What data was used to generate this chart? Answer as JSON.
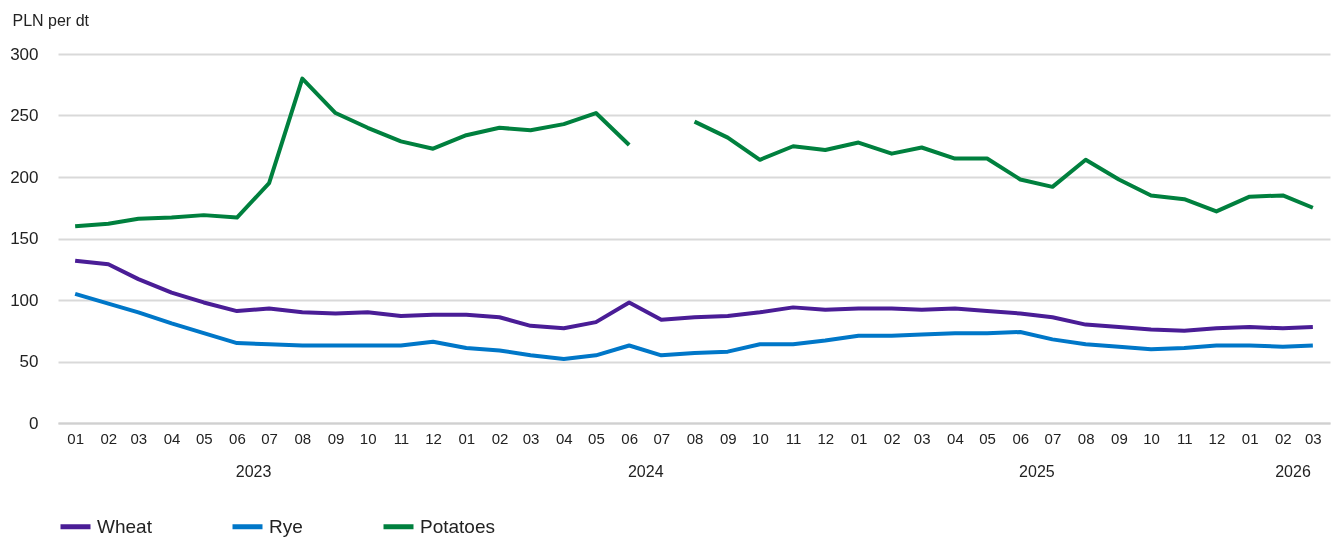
{
  "chart_data": {
    "type": "line",
    "ylabel": "PLN per dt",
    "x": [
      "2023-01",
      "2023-02",
      "2023-03",
      "2023-04",
      "2023-05",
      "2023-06",
      "2023-07",
      "2023-08",
      "2023-09",
      "2023-10",
      "2023-11",
      "2023-12",
      "2024-01",
      "2024-02",
      "2024-03",
      "2024-04",
      "2024-05",
      "2024-06",
      "2024-07",
      "2024-08",
      "2024-09",
      "2024-10",
      "2024-11",
      "2024-12",
      "2025-01",
      "2025-02",
      "2025-03",
      "2025-04",
      "2025-05",
      "2025-06",
      "2025-07",
      "2025-08",
      "2025-09",
      "2025-10",
      "2025-11",
      "2025-12",
      "2026-01",
      "2026-02",
      "2026-03"
    ],
    "xlim": [
      "2022-12-16",
      "2026-03-17"
    ],
    "xticks": [
      {
        "value": "2023-01",
        "label": "01"
      },
      {
        "value": "2023-02",
        "label": "02"
      },
      {
        "value": "2023-03",
        "label": "03"
      },
      {
        "value": "2023-04",
        "label": "04"
      },
      {
        "value": "2023-05",
        "label": "05"
      },
      {
        "value": "2023-06",
        "label": "06"
      },
      {
        "value": "2023-07",
        "label": "07"
      },
      {
        "value": "2023-08",
        "label": "08"
      },
      {
        "value": "2023-09",
        "label": "09"
      },
      {
        "value": "2023-10",
        "label": "10"
      },
      {
        "value": "2023-11",
        "label": "11"
      },
      {
        "value": "2023-12",
        "label": "12"
      },
      {
        "value": "2024-01",
        "label": "01"
      },
      {
        "value": "2024-02",
        "label": "02"
      },
      {
        "value": "2024-03",
        "label": "03"
      },
      {
        "value": "2024-04",
        "label": "04"
      },
      {
        "value": "2024-05",
        "label": "05"
      },
      {
        "value": "2024-06",
        "label": "06"
      },
      {
        "value": "2024-07",
        "label": "07"
      },
      {
        "value": "2024-08",
        "label": "08"
      },
      {
        "value": "2024-09",
        "label": "09"
      },
      {
        "value": "2024-10",
        "label": "10"
      },
      {
        "value": "2024-11",
        "label": "11"
      },
      {
        "value": "2024-12",
        "label": "12"
      },
      {
        "value": "2025-01",
        "label": "01"
      },
      {
        "value": "2025-02",
        "label": "02"
      },
      {
        "value": "2025-03",
        "label": "03"
      },
      {
        "value": "2025-04",
        "label": "04"
      },
      {
        "value": "2025-05",
        "label": "05"
      },
      {
        "value": "2025-06",
        "label": "06"
      },
      {
        "value": "2025-07",
        "label": "07"
      },
      {
        "value": "2025-08",
        "label": "08"
      },
      {
        "value": "2025-09",
        "label": "09"
      },
      {
        "value": "2025-10",
        "label": "10"
      },
      {
        "value": "2025-11",
        "label": "11"
      },
      {
        "value": "2025-12",
        "label": "12"
      },
      {
        "value": "2026-01",
        "label": "01"
      },
      {
        "value": "2026-02",
        "label": "02"
      },
      {
        "value": "2026-03",
        "label": "03"
      }
    ],
    "ylim": [
      0,
      300
    ],
    "yticks": [
      0,
      50,
      100,
      150,
      200,
      250,
      300
    ],
    "grid": "y",
    "legend": "bottom",
    "line_style": "solid",
    "x2lim": [
      "2022-12-16",
      "2026-03-17"
    ],
    "x2ticks": [
      {
        "value": "2023-06-16",
        "label": "2023"
      },
      {
        "value": "2024-06-16",
        "label": "2024"
      },
      {
        "value": "2025-06-16",
        "label": "2025"
      },
      {
        "value": "2026-02-10",
        "label": "2026"
      }
    ],
    "series": [
      {
        "name": "Wheat",
        "color": "#4a1d96",
        "values": [
          132,
          129,
          117,
          106,
          98,
          91,
          93,
          90,
          89,
          90,
          87,
          88,
          88,
          86,
          79,
          77,
          82,
          98,
          84,
          86,
          87,
          90,
          94,
          92,
          93,
          93,
          92,
          93,
          91,
          89,
          86,
          80,
          78,
          76,
          75,
          77,
          78,
          77,
          78
        ]
      },
      {
        "name": "Rye",
        "color": "#0077c8",
        "values": [
          105,
          97,
          90,
          81,
          73,
          65,
          64,
          63,
          63,
          63,
          63,
          66,
          61,
          59,
          55,
          52,
          55,
          63,
          55,
          57,
          58,
          64,
          64,
          67,
          71,
          71,
          72,
          73,
          73,
          74,
          68,
          64,
          62,
          60,
          61,
          63,
          63,
          62,
          63
        ]
      },
      {
        "name": "Potatoes",
        "color": "#00803e",
        "values": [
          160,
          162,
          166,
          167,
          169,
          167,
          195,
          280,
          252,
          240,
          229,
          223,
          234,
          240,
          238,
          243,
          252,
          226,
          null,
          245,
          232,
          214,
          225,
          222,
          228,
          219,
          224,
          215,
          215,
          198,
          192,
          214,
          198,
          185,
          182,
          172,
          184,
          185,
          175
        ]
      }
    ]
  }
}
